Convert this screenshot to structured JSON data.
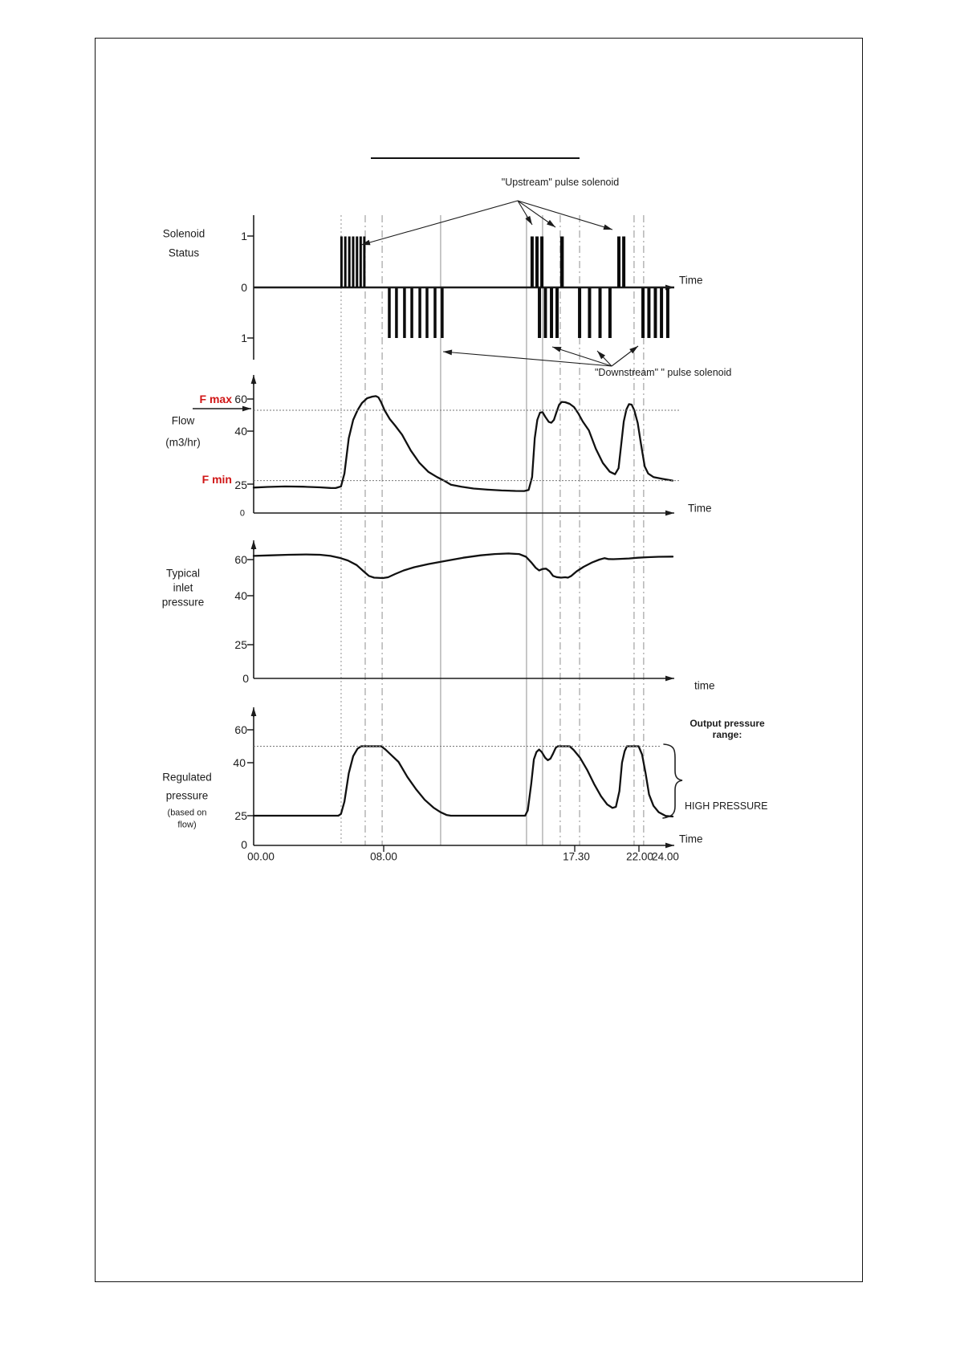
{
  "figure_annotations": {
    "upstream_label": "\"Upstream\"  pulse solenoid",
    "downstream_label": "\"Downstream\" \" pulse solenoid"
  },
  "colors": {
    "accent_red": "#d01616",
    "curve": "#111111",
    "reference_line": "#909090"
  },
  "chart_data": [
    {
      "id": "solenoid_status",
      "type": "pulse-timeline",
      "ylabel_lines": [
        "Solenoid",
        "Status"
      ],
      "yticks": [
        "1",
        "0",
        "1"
      ],
      "xlabel": "Time",
      "upstream_pulses_h": [
        [
          5.03,
          5.25,
          5.48,
          5.7,
          5.92,
          6.13,
          6.34
        ],
        [
          15.95,
          16.23,
          16.51
        ],
        [
          17.66
        ],
        [
          20.92,
          21.2
        ]
      ],
      "downstream_pulses_h": [
        [
          7.77,
          8.18,
          8.64,
          9.06,
          9.52,
          9.93,
          10.39,
          10.8
        ],
        [
          16.37,
          16.71,
          17.06,
          17.38
        ],
        [
          18.67,
          19.24,
          19.84,
          20.41
        ],
        [
          22.3,
          22.64,
          23.01,
          23.36,
          23.72
        ]
      ]
    },
    {
      "id": "flow",
      "type": "line",
      "ylabel_lines": [
        "Flow",
        "(m3/hr)"
      ],
      "yticks": [
        "60",
        "40",
        "25",
        "0"
      ],
      "xlabel": "Time",
      "f_max_label": "F max",
      "f_min_label": "F min",
      "f_max_value": 53,
      "f_min_value": 26,
      "x_unit": "hours",
      "ylim": [
        0,
        70
      ],
      "points": [
        [
          0,
          22
        ],
        [
          0.8,
          22.6
        ],
        [
          1.8,
          23
        ],
        [
          2.8,
          22.8
        ],
        [
          3.8,
          22.2
        ],
        [
          4.4,
          21.7
        ],
        [
          4.7,
          21.6
        ],
        [
          5.0,
          23
        ],
        [
          5.2,
          28
        ],
        [
          5.45,
          38
        ],
        [
          5.7,
          47
        ],
        [
          5.95,
          53
        ],
        [
          6.2,
          57.5
        ],
        [
          6.5,
          60.5
        ],
        [
          6.8,
          61.5
        ],
        [
          7.0,
          61.8
        ],
        [
          7.15,
          61
        ],
        [
          7.3,
          58
        ],
        [
          7.5,
          53
        ],
        [
          7.8,
          47.5
        ],
        [
          8.1,
          43.5
        ],
        [
          8.5,
          39
        ],
        [
          9.0,
          34.5
        ],
        [
          9.5,
          31
        ],
        [
          10.0,
          28.5
        ],
        [
          10.5,
          27
        ],
        [
          10.9,
          26
        ],
        [
          11.3,
          24.5
        ],
        [
          11.9,
          22.8
        ],
        [
          12.6,
          21.2
        ],
        [
          13.4,
          20.2
        ],
        [
          14.2,
          19.5
        ],
        [
          15.0,
          19.1
        ],
        [
          15.5,
          19.0
        ],
        [
          15.75,
          20
        ],
        [
          15.95,
          27
        ],
        [
          16.1,
          38
        ],
        [
          16.25,
          47
        ],
        [
          16.4,
          51.5
        ],
        [
          16.55,
          51.8
        ],
        [
          16.7,
          49
        ],
        [
          16.9,
          45.8
        ],
        [
          17.05,
          45.2
        ],
        [
          17.2,
          47
        ],
        [
          17.35,
          52
        ],
        [
          17.5,
          56.5
        ],
        [
          17.65,
          58.2
        ],
        [
          17.85,
          58
        ],
        [
          18.1,
          57
        ],
        [
          18.35,
          55
        ],
        [
          18.6,
          51
        ],
        [
          18.85,
          46
        ],
        [
          19.2,
          40.5
        ],
        [
          19.6,
          35
        ],
        [
          20.0,
          31
        ],
        [
          20.4,
          28.5
        ],
        [
          20.7,
          27.8
        ],
        [
          20.9,
          29.5
        ],
        [
          21.05,
          36
        ],
        [
          21.2,
          46
        ],
        [
          21.35,
          53.5
        ],
        [
          21.5,
          56.8
        ],
        [
          21.65,
          56.5
        ],
        [
          21.8,
          53
        ],
        [
          22.0,
          45
        ],
        [
          22.2,
          36
        ],
        [
          22.4,
          30
        ],
        [
          22.6,
          28
        ],
        [
          22.9,
          27
        ],
        [
          23.4,
          26.5
        ],
        [
          24,
          26
        ]
      ]
    },
    {
      "id": "typical_inlet_pressure",
      "type": "line",
      "ylabel_lines": [
        "Typical",
        "inlet",
        "pressure"
      ],
      "yticks": [
        "60",
        "40",
        "25",
        "0"
      ],
      "xlabel": "time",
      "ylim": [
        0,
        70
      ],
      "points": [
        [
          0,
          62
        ],
        [
          1,
          62.3
        ],
        [
          2,
          62.6
        ],
        [
          3,
          62.8
        ],
        [
          3.8,
          62.6
        ],
        [
          4.4,
          62
        ],
        [
          4.9,
          61
        ],
        [
          5.4,
          59.5
        ],
        [
          5.9,
          57
        ],
        [
          6.3,
          53.5
        ],
        [
          6.6,
          51
        ],
        [
          6.9,
          50
        ],
        [
          7.4,
          49.8
        ],
        [
          7.7,
          50.2
        ],
        [
          8.1,
          52
        ],
        [
          8.6,
          54
        ],
        [
          9.2,
          55.8
        ],
        [
          10,
          57.5
        ],
        [
          11,
          59.3
        ],
        [
          12,
          61
        ],
        [
          13,
          62.3
        ],
        [
          13.8,
          63
        ],
        [
          14.6,
          63.3
        ],
        [
          15.2,
          63
        ],
        [
          15.6,
          61.5
        ],
        [
          15.9,
          58.5
        ],
        [
          16.15,
          55.5
        ],
        [
          16.35,
          54
        ],
        [
          16.55,
          54.8
        ],
        [
          16.75,
          55
        ],
        [
          16.95,
          53.5
        ],
        [
          17.15,
          51
        ],
        [
          17.35,
          50.3
        ],
        [
          17.6,
          50
        ],
        [
          17.85,
          50.2
        ],
        [
          18.0,
          50
        ],
        [
          18.2,
          51
        ],
        [
          18.5,
          53.5
        ],
        [
          18.9,
          56
        ],
        [
          19.4,
          58.5
        ],
        [
          19.8,
          60
        ],
        [
          20.1,
          60.8
        ],
        [
          20.3,
          60.3
        ],
        [
          20.6,
          60.2
        ],
        [
          21.0,
          60.4
        ],
        [
          21.5,
          60.6
        ],
        [
          22.0,
          61
        ],
        [
          22.6,
          61.3
        ],
        [
          23.2,
          61.5
        ],
        [
          24,
          61.6
        ]
      ]
    },
    {
      "id": "regulated_pressure",
      "type": "line",
      "ylabel_lines": [
        "Regulated",
        "pressure",
        "(based on",
        "flow)"
      ],
      "yticks": [
        "60",
        "40",
        "25",
        "0"
      ],
      "xlabel": "Time",
      "xtick_labels": [
        "00.00",
        "08.00",
        "17.30",
        "22.00",
        "24.00"
      ],
      "setpoint_value": 50,
      "annotations": {
        "output_range_line1": "Output pressure",
        "output_range_line2": "range:",
        "high_pressure": "HIGH PRESSURE"
      },
      "ylim": [
        0,
        70
      ],
      "points": [
        [
          0,
          25
        ],
        [
          4.85,
          25
        ],
        [
          5.0,
          25.5
        ],
        [
          5.2,
          29
        ],
        [
          5.45,
          37
        ],
        [
          5.7,
          44
        ],
        [
          5.95,
          48.5
        ],
        [
          6.15,
          50
        ],
        [
          6.35,
          50
        ],
        [
          7.3,
          50
        ],
        [
          7.55,
          48
        ],
        [
          7.9,
          44.5
        ],
        [
          8.3,
          40.5
        ],
        [
          8.8,
          36
        ],
        [
          9.3,
          32.5
        ],
        [
          9.8,
          29.5
        ],
        [
          10.3,
          27.3
        ],
        [
          10.7,
          26
        ],
        [
          11.05,
          25.2
        ],
        [
          11.3,
          25
        ],
        [
          15.55,
          25
        ],
        [
          15.7,
          26.5
        ],
        [
          15.9,
          34
        ],
        [
          16.05,
          42
        ],
        [
          16.2,
          46.5
        ],
        [
          16.35,
          48
        ],
        [
          16.5,
          46.5
        ],
        [
          16.7,
          43
        ],
        [
          16.85,
          41.5
        ],
        [
          17.0,
          42.5
        ],
        [
          17.15,
          45.5
        ],
        [
          17.3,
          49
        ],
        [
          17.42,
          50
        ],
        [
          18.1,
          50
        ],
        [
          18.35,
          47.5
        ],
        [
          18.7,
          43
        ],
        [
          19.1,
          38
        ],
        [
          19.5,
          34
        ],
        [
          19.9,
          30.5
        ],
        [
          20.25,
          28.2
        ],
        [
          20.55,
          27.2
        ],
        [
          20.75,
          27.5
        ],
        [
          20.95,
          32
        ],
        [
          21.1,
          40
        ],
        [
          21.25,
          47
        ],
        [
          21.38,
          50
        ],
        [
          22.05,
          50
        ],
        [
          22.25,
          45
        ],
        [
          22.45,
          37
        ],
        [
          22.65,
          31
        ],
        [
          22.9,
          27.8
        ],
        [
          23.2,
          26
        ],
        [
          23.6,
          24.8
        ],
        [
          24,
          24.3
        ]
      ]
    }
  ],
  "reference_lines": [
    {
      "t": 5.01,
      "style": "dotted"
    },
    {
      "t": 6.39,
      "style": "dashdot"
    },
    {
      "t": 7.36,
      "style": "dashdot"
    },
    {
      "t": 10.71,
      "style": "solid"
    },
    {
      "t": 15.63,
      "style": "solid"
    },
    {
      "t": 16.55,
      "style": "solid"
    },
    {
      "t": 17.56,
      "style": "dashdot"
    },
    {
      "t": 18.67,
      "style": "dashdot"
    },
    {
      "t": 21.79,
      "style": "dashdot"
    },
    {
      "t": 22.34,
      "style": "dashdot"
    }
  ]
}
